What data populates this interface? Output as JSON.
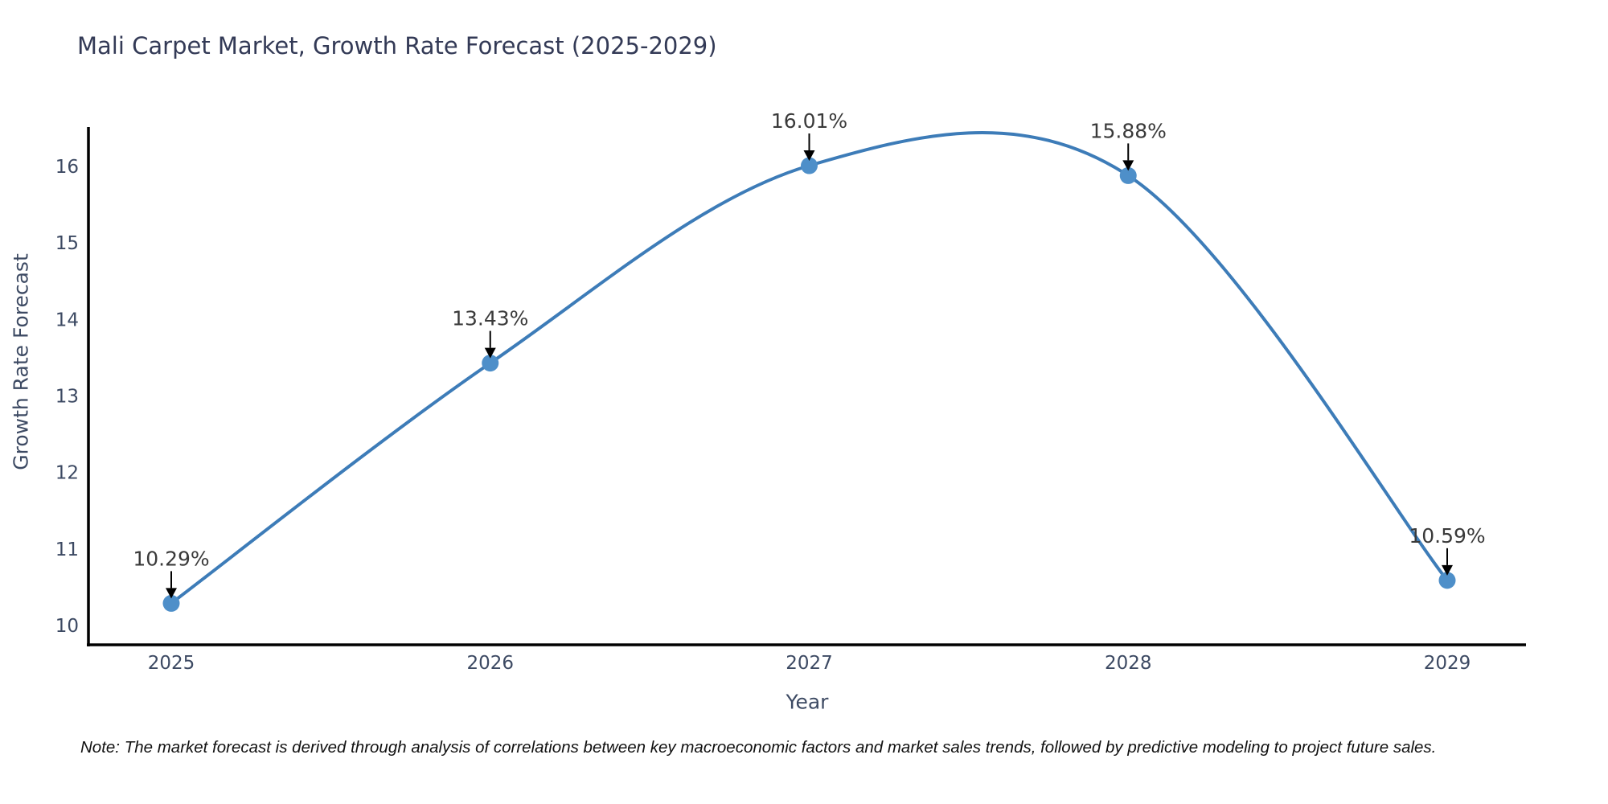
{
  "chart_data": {
    "type": "line",
    "title": "Mali Carpet Market, Growth Rate Forecast (2025-2029)",
    "xlabel": "Year",
    "ylabel": "Growth Rate Forecast",
    "x": [
      2025,
      2026,
      2027,
      2028,
      2029
    ],
    "values": [
      10.29,
      13.43,
      16.01,
      15.88,
      10.59
    ],
    "point_labels": [
      "10.29%",
      "13.43%",
      "16.01%",
      "15.88%",
      "10.59%"
    ],
    "yticks": [
      10,
      11,
      12,
      13,
      14,
      15,
      16
    ],
    "ylim": [
      9.75,
      16.5
    ],
    "xlim_years": [
      2024.74,
      2029.26
    ],
    "line_shape": "spline",
    "grid": false,
    "legend": "none",
    "note": "Note: The market forecast is derived through analysis of correlations between key macroeconomic factors and market sales trends, followed by predictive modeling to project future sales.",
    "colors": {
      "line": "#3d7cb8",
      "marker": "#4e8fc9",
      "annotation_arrow": "#000000",
      "annotation_text": "#3a3a3a",
      "axis_line": "#000000",
      "tick_label": "#3d4a63",
      "title": "#333a56",
      "background": "#ffffff"
    }
  }
}
